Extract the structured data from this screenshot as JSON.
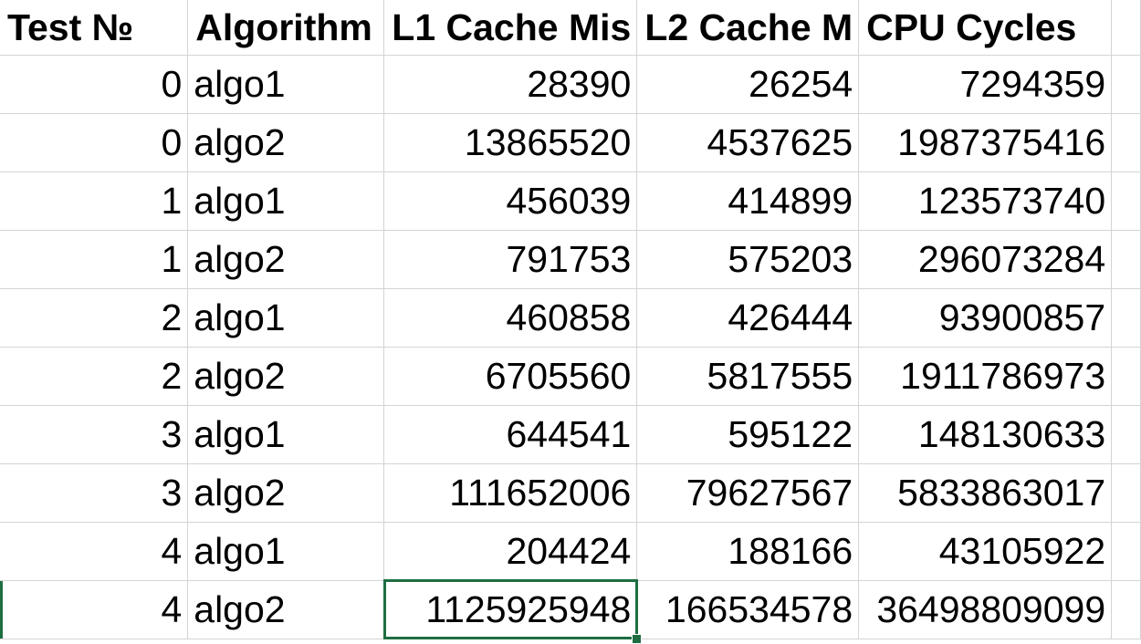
{
  "headers": [
    "Test №",
    "Algorithm",
    "L1 Cache Mis",
    "L2 Cache M",
    "CPU Cycles",
    ""
  ],
  "rows": [
    [
      "0",
      "algo1",
      "28390",
      "26254",
      "7294359"
    ],
    [
      "0",
      "algo2",
      "13865520",
      "4537625",
      "1987375416"
    ],
    [
      "1",
      "algo1",
      "456039",
      "414899",
      "123573740"
    ],
    [
      "1",
      "algo2",
      "791753",
      "575203",
      "296073284"
    ],
    [
      "2",
      "algo1",
      "460858",
      "426444",
      "93900857"
    ],
    [
      "2",
      "algo2",
      "6705560",
      "5817555",
      "1911786973"
    ],
    [
      "3",
      "algo1",
      "644541",
      "595122",
      "148130633"
    ],
    [
      "3",
      "algo2",
      "111652006",
      "79627567",
      "5833863017"
    ],
    [
      "4",
      "algo1",
      "204424",
      "188166",
      "43105922"
    ],
    [
      "4",
      "algo2",
      "1125925948",
      "166534578",
      "36498809099"
    ]
  ],
  "selection": {
    "row": 9,
    "col": 2
  },
  "colors": {
    "gridline": "#d4d4d4",
    "selection": "#1e6e42"
  }
}
